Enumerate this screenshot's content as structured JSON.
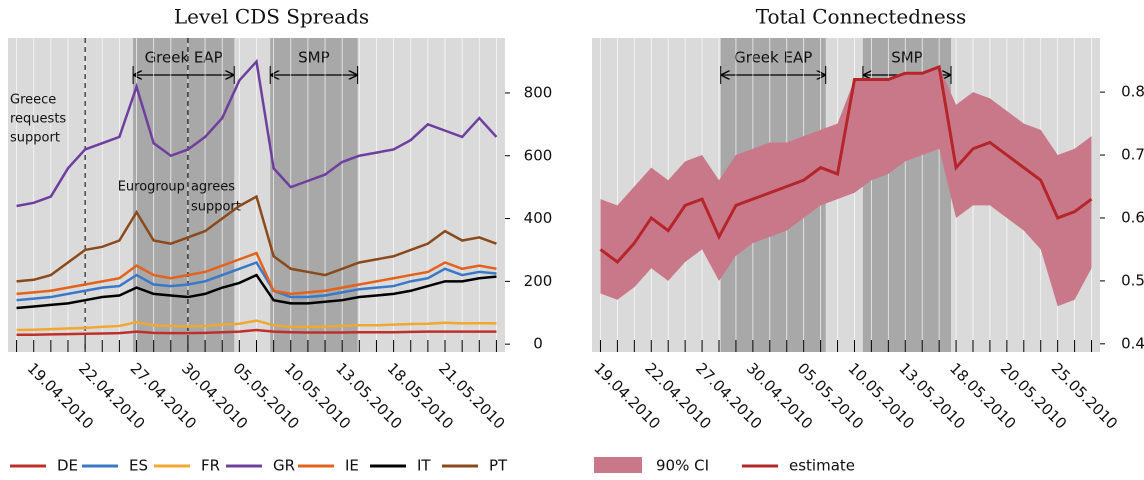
{
  "chart_data": [
    {
      "type": "line",
      "title": "Level CDS Spreads",
      "categories": [
        null,
        "19.04.2010",
        null,
        null,
        "22.04.2010",
        null,
        null,
        "27.04.2010",
        null,
        null,
        "30.04.2010",
        null,
        null,
        "05.05.2010",
        null,
        null,
        "10.05.2010",
        null,
        null,
        "13.05.2010",
        null,
        null,
        "18.05.2010",
        null,
        null,
        "21.05.2010",
        null,
        null,
        null
      ],
      "series": [
        {
          "name": "DE",
          "color": "#c0302b",
          "values": [
            30,
            30,
            31,
            32,
            33,
            34,
            35,
            40,
            36,
            35,
            35,
            36,
            38,
            40,
            45,
            40,
            38,
            37,
            37,
            37,
            38,
            38,
            38,
            39,
            40,
            40,
            40,
            40,
            40
          ]
        },
        {
          "name": "ES",
          "color": "#3a78c8",
          "values": [
            140,
            145,
            150,
            160,
            170,
            180,
            185,
            220,
            190,
            185,
            190,
            200,
            220,
            240,
            260,
            170,
            150,
            150,
            155,
            165,
            175,
            180,
            185,
            200,
            210,
            240,
            220,
            230,
            225
          ]
        },
        {
          "name": "FR",
          "color": "#f0a830",
          "values": [
            45,
            46,
            48,
            50,
            52,
            55,
            58,
            70,
            60,
            58,
            56,
            58,
            62,
            65,
            75,
            60,
            55,
            55,
            56,
            58,
            60,
            60,
            62,
            64,
            65,
            68,
            66,
            67,
            66
          ]
        },
        {
          "name": "GR",
          "color": "#6f3f9f",
          "values": [
            440,
            450,
            470,
            560,
            620,
            640,
            660,
            820,
            640,
            600,
            620,
            660,
            720,
            840,
            900,
            560,
            500,
            520,
            540,
            580,
            600,
            610,
            620,
            650,
            700,
            680,
            660,
            720,
            660
          ]
        },
        {
          "name": "IE",
          "color": "#e2621e",
          "values": [
            160,
            165,
            170,
            180,
            190,
            200,
            210,
            250,
            220,
            210,
            220,
            230,
            250,
            270,
            290,
            170,
            160,
            165,
            170,
            180,
            190,
            200,
            210,
            220,
            230,
            260,
            240,
            250,
            240
          ]
        },
        {
          "name": "IT",
          "color": "#000000",
          "values": [
            115,
            120,
            125,
            130,
            140,
            150,
            155,
            180,
            160,
            155,
            150,
            160,
            180,
            195,
            220,
            140,
            130,
            130,
            135,
            140,
            150,
            155,
            160,
            170,
            185,
            200,
            200,
            210,
            215
          ]
        },
        {
          "name": "PT",
          "color": "#8b4a1c",
          "values": [
            200,
            205,
            220,
            260,
            300,
            310,
            330,
            420,
            330,
            320,
            340,
            360,
            400,
            440,
            470,
            280,
            240,
            230,
            220,
            240,
            260,
            270,
            280,
            300,
            320,
            360,
            330,
            340,
            320
          ]
        }
      ],
      "ylim": [
        -25,
        975
      ],
      "yticks": [
        0,
        200,
        400,
        600,
        800
      ],
      "shaded_regions": [
        {
          "label": "Greek EAP",
          "start": 6.8,
          "end": 12.7
        },
        {
          "label": "SMP",
          "start": 14.8,
          "end": 19.9
        }
      ],
      "annotations": [
        {
          "text": [
            "Greece",
            "requests",
            "support"
          ],
          "at": "22.04.2010"
        },
        {
          "text": [
            "Eurogroup",
            "agrees",
            "support"
          ],
          "at": "30.04.2010"
        }
      ]
    },
    {
      "type": "line",
      "title": "Total Connectedness",
      "categories": [
        "19.04.2010",
        null,
        null,
        "22.04.2010",
        null,
        null,
        "27.04.2010",
        null,
        null,
        "30.04.2010",
        null,
        null,
        "05.05.2010",
        null,
        null,
        "10.05.2010",
        null,
        null,
        "13.05.2010",
        null,
        null,
        "18.05.2010",
        null,
        null,
        "20.05.2010",
        null,
        null,
        "25.05.2010",
        null,
        null
      ],
      "series": [
        {
          "name": "90% CI",
          "color": "#c9788a",
          "lower": [
            0.48,
            0.47,
            0.49,
            0.52,
            0.5,
            0.53,
            0.55,
            0.5,
            0.54,
            0.56,
            0.57,
            0.58,
            0.6,
            0.62,
            0.63,
            0.64,
            0.66,
            0.67,
            0.69,
            0.7,
            0.71,
            0.6,
            0.62,
            0.62,
            0.6,
            0.58,
            0.55,
            0.46,
            0.47,
            0.52
          ],
          "upper": [
            0.63,
            0.62,
            0.65,
            0.68,
            0.66,
            0.69,
            0.7,
            0.66,
            0.7,
            0.71,
            0.72,
            0.72,
            0.73,
            0.74,
            0.75,
            0.82,
            0.82,
            0.82,
            0.83,
            0.83,
            0.84,
            0.78,
            0.8,
            0.79,
            0.77,
            0.75,
            0.74,
            0.7,
            0.71,
            0.73
          ]
        },
        {
          "name": "estimate",
          "color": "#b5262b",
          "values": [
            0.55,
            0.53,
            0.56,
            0.6,
            0.58,
            0.62,
            0.63,
            0.57,
            0.62,
            0.63,
            0.64,
            0.65,
            0.66,
            0.68,
            0.67,
            0.82,
            0.82,
            0.82,
            0.83,
            0.83,
            0.84,
            0.68,
            0.71,
            0.72,
            0.7,
            0.68,
            0.66,
            0.6,
            0.61,
            0.63
          ]
        }
      ],
      "ylim": [
        0.387,
        0.886
      ],
      "yticks": [
        0.4,
        0.5,
        0.6,
        0.7,
        0.8
      ],
      "shaded_regions": [
        {
          "label": "Greek EAP",
          "start": 7.1,
          "end": 13.3
        },
        {
          "label": "SMP",
          "start": 15.5,
          "end": 20.7
        }
      ]
    }
  ]
}
